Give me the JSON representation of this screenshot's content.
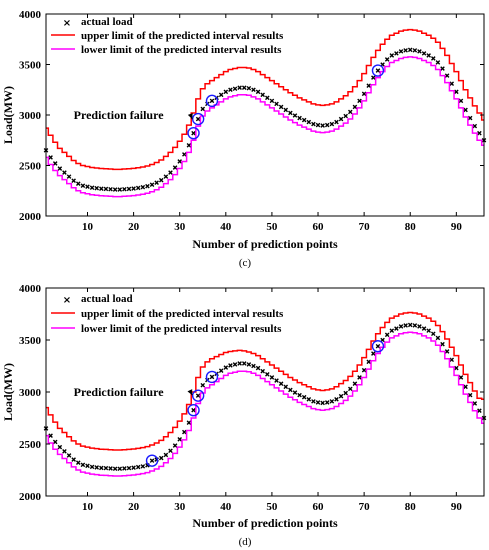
{
  "legend_labels": {
    "actual": "actual load",
    "upper": "upper limit of the predicted interval results",
    "lower": "lower limit of the predicted interval results"
  },
  "colors": {
    "actual": "#000000",
    "upper": "#ff0000",
    "lower": "#ff00ff",
    "circle": "#1a1aff"
  },
  "chart_data": [
    {
      "type": "line",
      "caption": "(c)",
      "xlabel": "Number of prediction points",
      "ylabel": "Load(MW)",
      "xlim": [
        1,
        96
      ],
      "ylim": [
        2000,
        4000
      ],
      "xticks": [
        10,
        20,
        30,
        40,
        50,
        60,
        70,
        80,
        90
      ],
      "yticks": [
        2000,
        2500,
        3000,
        3500,
        4000
      ],
      "grid": false,
      "legend_position": "top-left",
      "annotation": {
        "text": "Prediction failure",
        "target_x": 34,
        "target_y": 2960,
        "label_x": 7,
        "label_y": 3000
      },
      "failure_points": [
        33,
        34,
        37,
        73
      ],
      "x": [
        1,
        2,
        3,
        4,
        5,
        6,
        7,
        8,
        9,
        10,
        11,
        12,
        13,
        14,
        15,
        16,
        17,
        18,
        19,
        20,
        21,
        22,
        23,
        24,
        25,
        26,
        27,
        28,
        29,
        30,
        31,
        32,
        33,
        34,
        35,
        36,
        37,
        38,
        39,
        40,
        41,
        42,
        43,
        44,
        45,
        46,
        47,
        48,
        49,
        50,
        51,
        52,
        53,
        54,
        55,
        56,
        57,
        58,
        59,
        60,
        61,
        62,
        63,
        64,
        65,
        66,
        67,
        68,
        69,
        70,
        71,
        72,
        73,
        74,
        75,
        76,
        77,
        78,
        79,
        80,
        81,
        82,
        83,
        84,
        85,
        86,
        87,
        88,
        89,
        90,
        91,
        92,
        93,
        94,
        95,
        96
      ],
      "series": [
        {
          "name": "actual load",
          "key": "actual",
          "values": [
            2650,
            2580,
            2520,
            2470,
            2430,
            2390,
            2350,
            2320,
            2300,
            2290,
            2280,
            2275,
            2270,
            2268,
            2265,
            2262,
            2262,
            2265,
            2268,
            2272,
            2278,
            2285,
            2295,
            2310,
            2330,
            2355,
            2390,
            2430,
            2480,
            2540,
            2610,
            2700,
            2820,
            2960,
            3060,
            3110,
            3140,
            3170,
            3200,
            3230,
            3250,
            3260,
            3270,
            3270,
            3265,
            3250,
            3230,
            3200,
            3170,
            3140,
            3110,
            3080,
            3050,
            3020,
            2995,
            2970,
            2950,
            2930,
            2910,
            2900,
            2895,
            2900,
            2910,
            2930,
            2960,
            2990,
            3030,
            3080,
            3140,
            3210,
            3290,
            3370,
            3440,
            3500,
            3550,
            3590,
            3610,
            3630,
            3640,
            3645,
            3640,
            3630,
            3610,
            3590,
            3560,
            3520,
            3460,
            3390,
            3310,
            3230,
            3140,
            3050,
            2970,
            2890,
            2820,
            2750
          ]
        },
        {
          "name": "upper limit of the predicted interval results",
          "key": "upper",
          "values": [
            2870,
            2800,
            2730,
            2670,
            2630,
            2590,
            2550,
            2520,
            2500,
            2490,
            2480,
            2475,
            2470,
            2468,
            2465,
            2462,
            2462,
            2465,
            2468,
            2472,
            2478,
            2485,
            2495,
            2510,
            2530,
            2555,
            2590,
            2630,
            2680,
            2740,
            2810,
            2900,
            3020,
            3160,
            3260,
            3310,
            3340,
            3370,
            3400,
            3430,
            3450,
            3460,
            3470,
            3470,
            3465,
            3450,
            3430,
            3400,
            3370,
            3340,
            3310,
            3280,
            3250,
            3220,
            3195,
            3170,
            3150,
            3130,
            3110,
            3100,
            3095,
            3100,
            3110,
            3130,
            3160,
            3190,
            3230,
            3280,
            3340,
            3410,
            3490,
            3570,
            3640,
            3700,
            3750,
            3790,
            3810,
            3830,
            3840,
            3845,
            3840,
            3830,
            3810,
            3790,
            3760,
            3720,
            3660,
            3590,
            3510,
            3430,
            3340,
            3250,
            3170,
            3090,
            3020,
            2950
          ]
        },
        {
          "name": "lower limit of the predicted interval results",
          "key": "lower",
          "values": [
            2580,
            2510,
            2450,
            2400,
            2360,
            2320,
            2280,
            2250,
            2230,
            2220,
            2210,
            2205,
            2200,
            2198,
            2195,
            2192,
            2192,
            2195,
            2198,
            2202,
            2208,
            2215,
            2225,
            2240,
            2260,
            2285,
            2320,
            2360,
            2410,
            2470,
            2540,
            2630,
            2750,
            2890,
            2990,
            3040,
            3070,
            3100,
            3130,
            3160,
            3180,
            3190,
            3200,
            3200,
            3195,
            3180,
            3160,
            3130,
            3100,
            3070,
            3040,
            3010,
            2980,
            2950,
            2925,
            2900,
            2880,
            2860,
            2840,
            2830,
            2825,
            2830,
            2840,
            2860,
            2890,
            2920,
            2960,
            3010,
            3070,
            3140,
            3220,
            3300,
            3370,
            3430,
            3480,
            3520,
            3540,
            3560,
            3570,
            3575,
            3570,
            3560,
            3540,
            3520,
            3490,
            3450,
            3390,
            3320,
            3240,
            3160,
            3070,
            2980,
            2900,
            2820,
            2750,
            2700
          ]
        }
      ]
    },
    {
      "type": "line",
      "caption": "(d)",
      "xlabel": "Number of prediction points",
      "ylabel": "Load(MW)",
      "xlim": [
        1,
        96
      ],
      "ylim": [
        2000,
        4000
      ],
      "xticks": [
        10,
        20,
        30,
        40,
        50,
        60,
        70,
        80,
        90
      ],
      "yticks": [
        2000,
        2500,
        3000,
        3500,
        4000
      ],
      "grid": false,
      "legend_position": "top-left",
      "annotation": {
        "text": "Prediction failure",
        "target_x": 34,
        "target_y": 2970,
        "label_x": 7,
        "label_y": 3000
      },
      "failure_points": [
        24,
        33,
        34,
        37,
        73
      ],
      "x": [
        1,
        2,
        3,
        4,
        5,
        6,
        7,
        8,
        9,
        10,
        11,
        12,
        13,
        14,
        15,
        16,
        17,
        18,
        19,
        20,
        21,
        22,
        23,
        24,
        25,
        26,
        27,
        28,
        29,
        30,
        31,
        32,
        33,
        34,
        35,
        36,
        37,
        38,
        39,
        40,
        41,
        42,
        43,
        44,
        45,
        46,
        47,
        48,
        49,
        50,
        51,
        52,
        53,
        54,
        55,
        56,
        57,
        58,
        59,
        60,
        61,
        62,
        63,
        64,
        65,
        66,
        67,
        68,
        69,
        70,
        71,
        72,
        73,
        74,
        75,
        76,
        77,
        78,
        79,
        80,
        81,
        82,
        83,
        84,
        85,
        86,
        87,
        88,
        89,
        90,
        91,
        92,
        93,
        94,
        95,
        96
      ],
      "series": [
        {
          "name": "actual load",
          "key": "actual",
          "values": [
            2650,
            2580,
            2520,
            2470,
            2430,
            2390,
            2350,
            2320,
            2300,
            2290,
            2280,
            2275,
            2270,
            2268,
            2265,
            2262,
            2262,
            2265,
            2268,
            2272,
            2278,
            2285,
            2295,
            2340,
            2350,
            2365,
            2395,
            2435,
            2485,
            2545,
            2615,
            2705,
            2825,
            2965,
            3065,
            3115,
            3145,
            3175,
            3205,
            3235,
            3255,
            3265,
            3275,
            3275,
            3265,
            3250,
            3230,
            3200,
            3170,
            3140,
            3110,
            3080,
            3050,
            3020,
            2995,
            2970,
            2950,
            2930,
            2910,
            2900,
            2895,
            2900,
            2910,
            2930,
            2960,
            2990,
            3030,
            3080,
            3140,
            3210,
            3290,
            3370,
            3440,
            3500,
            3550,
            3590,
            3610,
            3630,
            3640,
            3645,
            3640,
            3630,
            3610,
            3590,
            3560,
            3520,
            3460,
            3390,
            3310,
            3230,
            3140,
            3050,
            2970,
            2890,
            2820,
            2750
          ]
        },
        {
          "name": "upper limit of the predicted interval results",
          "key": "upper",
          "values": [
            2850,
            2780,
            2710,
            2650,
            2610,
            2570,
            2530,
            2500,
            2480,
            2470,
            2460,
            2455,
            2450,
            2448,
            2445,
            2442,
            2442,
            2445,
            2448,
            2452,
            2458,
            2465,
            2475,
            2490,
            2510,
            2535,
            2570,
            2610,
            2660,
            2720,
            2790,
            2880,
            3000,
            3140,
            3240,
            3290,
            3320,
            3340,
            3360,
            3380,
            3390,
            3395,
            3400,
            3395,
            3385,
            3370,
            3350,
            3320,
            3290,
            3260,
            3230,
            3200,
            3170,
            3140,
            3115,
            3090,
            3070,
            3050,
            3030,
            3020,
            3015,
            3020,
            3030,
            3050,
            3080,
            3110,
            3150,
            3200,
            3260,
            3330,
            3410,
            3490,
            3560,
            3620,
            3670,
            3710,
            3730,
            3750,
            3760,
            3765,
            3760,
            3750,
            3730,
            3710,
            3680,
            3640,
            3580,
            3510,
            3430,
            3350,
            3260,
            3170,
            3090,
            3010,
            2940,
            2930
          ]
        },
        {
          "name": "lower limit of the predicted interval results",
          "key": "lower",
          "values": [
            2580,
            2510,
            2450,
            2400,
            2360,
            2320,
            2280,
            2250,
            2230,
            2220,
            2210,
            2205,
            2200,
            2198,
            2195,
            2192,
            2192,
            2195,
            2198,
            2202,
            2208,
            2215,
            2225,
            2240,
            2260,
            2285,
            2320,
            2360,
            2410,
            2470,
            2540,
            2630,
            2750,
            2890,
            2990,
            3040,
            3070,
            3100,
            3130,
            3160,
            3180,
            3190,
            3200,
            3200,
            3195,
            3180,
            3160,
            3130,
            3100,
            3070,
            3040,
            3010,
            2980,
            2950,
            2925,
            2900,
            2880,
            2860,
            2840,
            2830,
            2825,
            2830,
            2840,
            2860,
            2890,
            2920,
            2960,
            3010,
            3070,
            3140,
            3220,
            3300,
            3370,
            3430,
            3480,
            3520,
            3540,
            3560,
            3570,
            3575,
            3570,
            3560,
            3540,
            3520,
            3490,
            3450,
            3390,
            3320,
            3240,
            3160,
            3070,
            2980,
            2900,
            2820,
            2750,
            2700
          ]
        }
      ]
    }
  ]
}
